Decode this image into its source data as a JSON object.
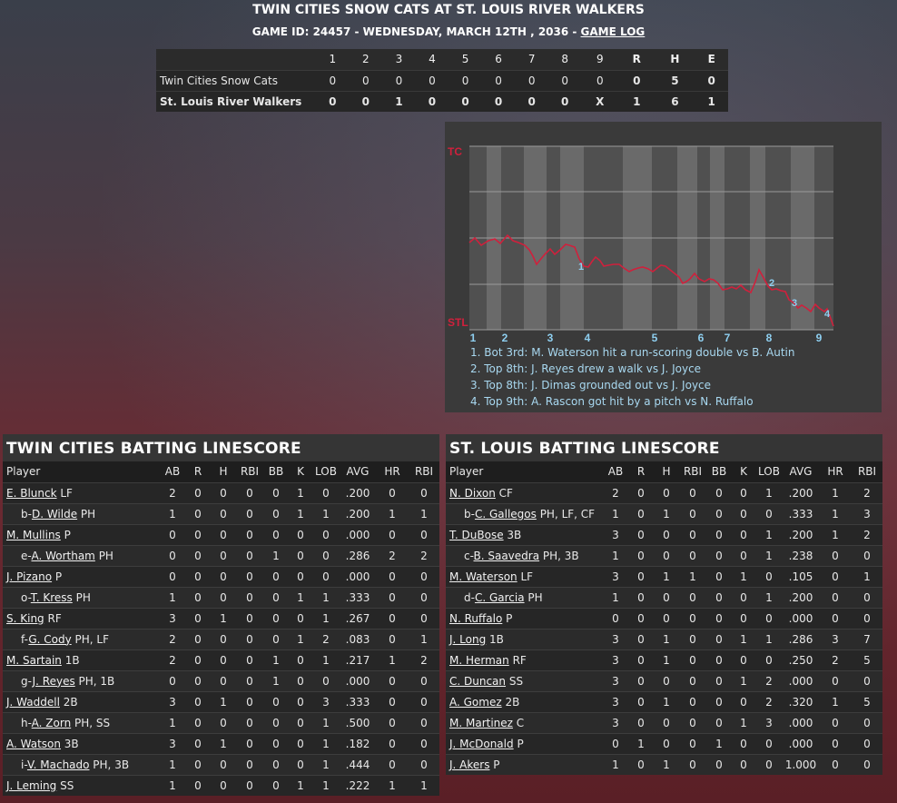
{
  "header": {
    "title": "TWIN CITIES SNOW CATS AT ST. LOUIS RIVER WALKERS",
    "subtitle": "GAME ID: 24457 - WEDNESDAY, MARCH 12TH , 2036 - ",
    "game_log_link": "GAME LOG"
  },
  "linescore": {
    "innings": [
      "1",
      "2",
      "3",
      "4",
      "5",
      "6",
      "7",
      "8",
      "9"
    ],
    "totals_headers": [
      "R",
      "H",
      "E"
    ],
    "teams": [
      {
        "name": "Twin Cities Snow Cats",
        "innings": [
          "0",
          "0",
          "0",
          "0",
          "0",
          "0",
          "0",
          "0",
          "0"
        ],
        "totals": [
          "0",
          "5",
          "0"
        ]
      },
      {
        "name": "St. Louis River Walkers",
        "innings": [
          "0",
          "0",
          "1",
          "0",
          "0",
          "0",
          "0",
          "0",
          "X"
        ],
        "totals": [
          "1",
          "6",
          "1"
        ]
      }
    ]
  },
  "win_prob_chart": {
    "team_top": "TC",
    "team_bottom": "STL",
    "inning_labels": [
      "1",
      "2",
      "3",
      "4",
      "5",
      "6",
      "7",
      "8",
      "9"
    ],
    "colors": {
      "line": "#d0203c",
      "shade": "#6a6a6a",
      "marker": "#8ecff0"
    },
    "plays": [
      "1. Bot 3rd: M. Waterson hit a run-scoring double vs B. Autin",
      "2. Top 8th: J. Reyes drew a walk vs J. Joyce",
      "3. Top 8th: J. Dimas grounded out vs J. Joyce",
      "4. Top 9th: A. Rascon got hit by a pitch vs N. Ruffalo"
    ]
  },
  "columns": [
    "Player",
    "AB",
    "R",
    "H",
    "RBI",
    "BB",
    "K",
    "LOB",
    "AVG",
    "HR",
    "RBI"
  ],
  "away_batting": {
    "title": "TWIN CITIES BATTING LINESCORE",
    "rows": [
      {
        "prefix": "",
        "name": "E. Blunck",
        "pos": "LF",
        "stats": [
          "2",
          "0",
          "0",
          "0",
          "0",
          "1",
          "0",
          ".200",
          "0",
          "0"
        ]
      },
      {
        "prefix": "b-",
        "name": "D. Wilde",
        "pos": "PH",
        "stats": [
          "1",
          "0",
          "0",
          "0",
          "0",
          "1",
          "1",
          ".200",
          "1",
          "1"
        ]
      },
      {
        "prefix": "",
        "name": "M. Mullins",
        "pos": "P",
        "stats": [
          "0",
          "0",
          "0",
          "0",
          "0",
          "0",
          "0",
          ".000",
          "0",
          "0"
        ]
      },
      {
        "prefix": "e-",
        "name": "A. Wortham",
        "pos": "PH",
        "stats": [
          "0",
          "0",
          "0",
          "0",
          "1",
          "0",
          "0",
          ".286",
          "2",
          "2"
        ]
      },
      {
        "prefix": "",
        "name": "J. Pizano",
        "pos": "P",
        "stats": [
          "0",
          "0",
          "0",
          "0",
          "0",
          "0",
          "0",
          ".000",
          "0",
          "0"
        ]
      },
      {
        "prefix": "o-",
        "name": "T. Kress",
        "pos": "PH",
        "stats": [
          "1",
          "0",
          "0",
          "0",
          "0",
          "1",
          "1",
          ".333",
          "0",
          "0"
        ]
      },
      {
        "prefix": "",
        "name": "S. King",
        "pos": "RF",
        "stats": [
          "3",
          "0",
          "1",
          "0",
          "0",
          "0",
          "1",
          ".267",
          "0",
          "0"
        ]
      },
      {
        "prefix": "f-",
        "name": "G. Cody",
        "pos": "PH, LF",
        "stats": [
          "2",
          "0",
          "0",
          "0",
          "0",
          "1",
          "2",
          ".083",
          "0",
          "1"
        ]
      },
      {
        "prefix": "",
        "name": "M. Sartain",
        "pos": "1B",
        "stats": [
          "2",
          "0",
          "0",
          "0",
          "1",
          "0",
          "1",
          ".217",
          "1",
          "2"
        ]
      },
      {
        "prefix": "g-",
        "name": "J. Reyes",
        "pos": "PH, 1B",
        "stats": [
          "0",
          "0",
          "0",
          "0",
          "1",
          "0",
          "0",
          ".000",
          "0",
          "0"
        ]
      },
      {
        "prefix": "",
        "name": "J. Waddell",
        "pos": "2B",
        "stats": [
          "3",
          "0",
          "1",
          "0",
          "0",
          "0",
          "3",
          ".333",
          "0",
          "0"
        ]
      },
      {
        "prefix": "h-",
        "name": "A. Zorn",
        "pos": "PH, SS",
        "stats": [
          "1",
          "0",
          "0",
          "0",
          "0",
          "0",
          "1",
          ".500",
          "0",
          "0"
        ]
      },
      {
        "prefix": "",
        "name": "A. Watson",
        "pos": "3B",
        "stats": [
          "3",
          "0",
          "1",
          "0",
          "0",
          "0",
          "1",
          ".182",
          "0",
          "0"
        ]
      },
      {
        "prefix": "i-",
        "name": "V. Machado",
        "pos": "PH, 3B",
        "stats": [
          "1",
          "0",
          "0",
          "0",
          "0",
          "0",
          "1",
          ".444",
          "0",
          "0"
        ]
      },
      {
        "prefix": "",
        "name": "J. Leming",
        "pos": "SS",
        "stats": [
          "1",
          "0",
          "0",
          "0",
          "0",
          "1",
          "1",
          ".222",
          "1",
          "1"
        ]
      }
    ]
  },
  "home_batting": {
    "title": "ST. LOUIS BATTING LINESCORE",
    "rows": [
      {
        "prefix": "",
        "name": "N. Dixon",
        "pos": "CF",
        "stats": [
          "2",
          "0",
          "0",
          "0",
          "0",
          "0",
          "1",
          ".200",
          "1",
          "2"
        ]
      },
      {
        "prefix": "b-",
        "name": "C. Gallegos",
        "pos": "PH, LF, CF",
        "stats": [
          "1",
          "0",
          "1",
          "0",
          "0",
          "0",
          "0",
          ".333",
          "1",
          "3"
        ]
      },
      {
        "prefix": "",
        "name": "T. DuBose",
        "pos": "3B",
        "stats": [
          "3",
          "0",
          "0",
          "0",
          "0",
          "0",
          "1",
          ".200",
          "1",
          "2"
        ]
      },
      {
        "prefix": "c-",
        "name": "B. Saavedra",
        "pos": "PH, 3B",
        "stats": [
          "1",
          "0",
          "0",
          "0",
          "0",
          "0",
          "1",
          ".238",
          "0",
          "0"
        ]
      },
      {
        "prefix": "",
        "name": "M. Waterson",
        "pos": "LF",
        "stats": [
          "3",
          "0",
          "1",
          "1",
          "0",
          "1",
          "0",
          ".105",
          "0",
          "1"
        ]
      },
      {
        "prefix": "d-",
        "name": "C. Garcia",
        "pos": "PH",
        "stats": [
          "1",
          "0",
          "0",
          "0",
          "0",
          "0",
          "1",
          ".200",
          "0",
          "0"
        ]
      },
      {
        "prefix": "",
        "name": "N. Ruffalo",
        "pos": "P",
        "stats": [
          "0",
          "0",
          "0",
          "0",
          "0",
          "0",
          "0",
          ".000",
          "0",
          "0"
        ]
      },
      {
        "prefix": "",
        "name": "J. Long",
        "pos": "1B",
        "stats": [
          "3",
          "0",
          "1",
          "0",
          "0",
          "1",
          "1",
          ".286",
          "3",
          "7"
        ]
      },
      {
        "prefix": "",
        "name": "M. Herman",
        "pos": "RF",
        "stats": [
          "3",
          "0",
          "1",
          "0",
          "0",
          "0",
          "0",
          ".250",
          "2",
          "5"
        ]
      },
      {
        "prefix": "",
        "name": "C. Duncan",
        "pos": "SS",
        "stats": [
          "3",
          "0",
          "0",
          "0",
          "0",
          "1",
          "2",
          ".000",
          "0",
          "0"
        ]
      },
      {
        "prefix": "",
        "name": "A. Gomez",
        "pos": "2B",
        "stats": [
          "3",
          "0",
          "1",
          "0",
          "0",
          "0",
          "2",
          ".320",
          "1",
          "5"
        ]
      },
      {
        "prefix": "",
        "name": "M. Martinez",
        "pos": "C",
        "stats": [
          "3",
          "0",
          "0",
          "0",
          "0",
          "1",
          "3",
          ".000",
          "0",
          "0"
        ]
      },
      {
        "prefix": "",
        "name": "J. McDonald",
        "pos": "P",
        "stats": [
          "0",
          "1",
          "0",
          "0",
          "1",
          "0",
          "0",
          ".000",
          "0",
          "0"
        ]
      },
      {
        "prefix": "",
        "name": "J. Akers",
        "pos": "P",
        "stats": [
          "1",
          "0",
          "1",
          "0",
          "0",
          "0",
          "0",
          "1.000",
          "0",
          "0"
        ]
      }
    ]
  }
}
